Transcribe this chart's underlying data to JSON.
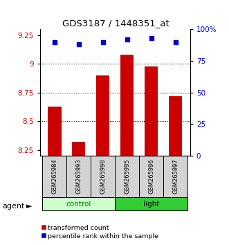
{
  "title": "GDS3187 / 1448351_at",
  "samples": [
    "GSM265984",
    "GSM265993",
    "GSM265998",
    "GSM265995",
    "GSM265996",
    "GSM265997"
  ],
  "groups": [
    "control",
    "control",
    "control",
    "light",
    "light",
    "light"
  ],
  "red_values": [
    8.63,
    8.32,
    8.9,
    9.08,
    8.98,
    8.72
  ],
  "blue_values": [
    90,
    88,
    90,
    92,
    93,
    90
  ],
  "ylim_left": [
    8.2,
    9.3
  ],
  "ylim_right": [
    0,
    100
  ],
  "yticks_left": [
    8.25,
    8.5,
    8.75,
    9.0,
    9.25
  ],
  "yticks_right": [
    0,
    25,
    50,
    75,
    100
  ],
  "ytick_labels_left": [
    "8.25",
    "8.5",
    "8.75",
    "9",
    "9.25"
  ],
  "ytick_labels_right": [
    "0",
    "25",
    "50",
    "75",
    "100%"
  ],
  "hlines": [
    8.5,
    8.75,
    9.0
  ],
  "bar_color": "#cc0000",
  "dot_color": "#0000cc",
  "bar_width": 0.55,
  "control_color": "#ccffcc",
  "light_color": "#33cc33",
  "group_label_color": "#007700",
  "agent_label": "agent",
  "legend_items": [
    "transformed count",
    "percentile rank within the sample"
  ],
  "legend_colors": [
    "#cc0000",
    "#0000cc"
  ],
  "tick_label_color_left": "#cc0000",
  "tick_label_color_right": "#0000cc"
}
